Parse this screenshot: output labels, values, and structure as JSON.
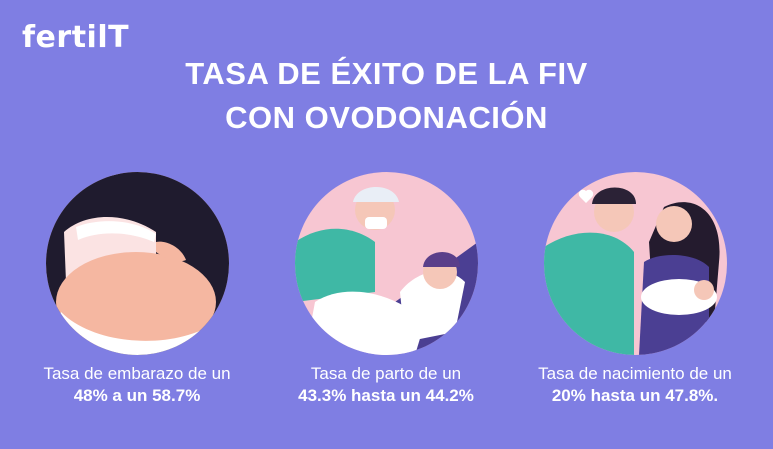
{
  "brand": {
    "logo_text": "fertilT"
  },
  "header": {
    "title_line1": "TASA DE ÉXITO DE LA FIV",
    "title_line2": "CON OVODONACIÓN"
  },
  "cards": [
    {
      "caption_line1": "Tasa de embarazo de un",
      "caption_line2": "48% a un 58.7%",
      "icon": "pregnant-belly-illustration"
    },
    {
      "caption_line1": "Tasa de parto de un",
      "caption_line2": "43.3% hasta un 44.2%",
      "icon": "doctor-patient-illustration"
    },
    {
      "caption_line1": "Tasa de nacimiento de un",
      "caption_line2": "20% hasta un 47.8%.",
      "icon": "family-newborn-illustration"
    }
  ],
  "colors": {
    "background": "#7f7ee3",
    "circle": "#f7c6d2",
    "text": "#ffffff"
  }
}
